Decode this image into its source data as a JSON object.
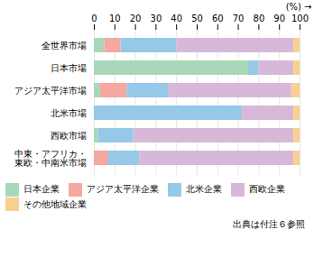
{
  "chart_data": {
    "type": "bar",
    "orientation": "horizontal",
    "stacked": true,
    "categories": [
      "全世界市場",
      "日本市場",
      "アジア太平洋市場",
      "北米市場",
      "西欧市場",
      "中東・アフリカ・\n東欧・中南米市場"
    ],
    "series": [
      {
        "name": "日本企業",
        "color": "#a8d8b8",
        "values": [
          5,
          75,
          3,
          0,
          2,
          0
        ]
      },
      {
        "name": "アジア太平洋企業",
        "color": "#f4a8a0",
        "values": [
          8,
          0,
          13,
          0,
          0,
          7
        ]
      },
      {
        "name": "北米企業",
        "color": "#96c8e8",
        "values": [
          27,
          5,
          20,
          72,
          17,
          15
        ]
      },
      {
        "name": "西欧企業",
        "color": "#d8b8d8",
        "values": [
          57,
          17,
          60,
          25,
          78,
          75
        ]
      },
      {
        "name": "その他地域企業",
        "color": "#f8d090",
        "values": [
          3,
          3,
          4,
          3,
          3,
          3
        ]
      }
    ],
    "xlabel": "(%)",
    "xlim": [
      0,
      100
    ],
    "xticks": [
      0,
      10,
      20,
      30,
      40,
      50,
      60,
      70,
      80,
      90,
      100
    ],
    "grid": true,
    "legend": "bottom",
    "annotations": [
      "出典は付注６参照"
    ]
  }
}
